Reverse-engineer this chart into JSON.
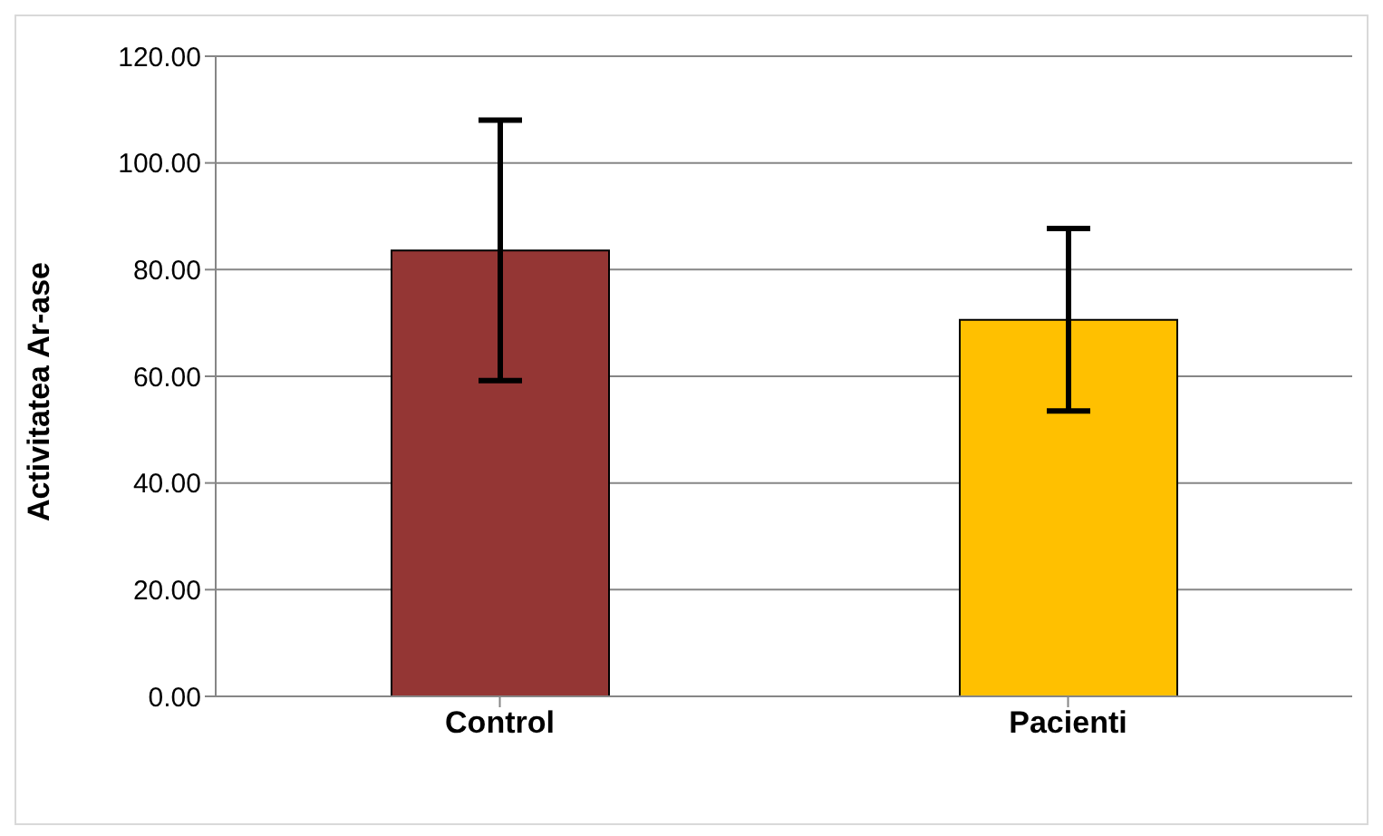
{
  "chart_data": {
    "type": "bar",
    "ylabel": "Activitatea Ar-ase",
    "categories": [
      "Control",
      "Pacienti"
    ],
    "values": [
      83.6,
      70.6
    ],
    "errors": [
      24.4,
      17.1
    ],
    "colors": [
      "#943634",
      "#ffc000"
    ],
    "ylim": [
      0,
      120
    ],
    "yticks": [
      {
        "value": 0,
        "label": "0.00"
      },
      {
        "value": 20,
        "label": "20.00"
      },
      {
        "value": 40,
        "label": "40.00"
      },
      {
        "value": 60,
        "label": "60.00"
      },
      {
        "value": 80,
        "label": "80.00"
      },
      {
        "value": 100,
        "label": "100.00"
      },
      {
        "value": 120,
        "label": "120.00"
      }
    ],
    "grid": "y"
  }
}
